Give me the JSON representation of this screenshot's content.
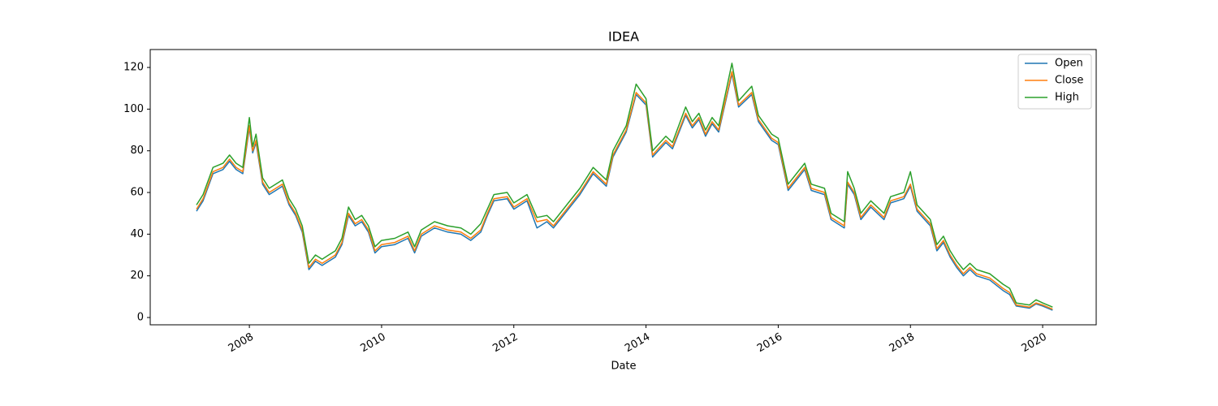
{
  "chart_data": {
    "type": "line",
    "title": "IDEA",
    "x_label": "Date",
    "x": [
      2007.2,
      2007.3,
      2007.45,
      2007.6,
      2007.7,
      2007.8,
      2007.9,
      2008.0,
      2008.05,
      2008.1,
      2008.2,
      2008.3,
      2008.4,
      2008.5,
      2008.6,
      2008.7,
      2008.8,
      2008.9,
      2009.0,
      2009.1,
      2009.2,
      2009.3,
      2009.4,
      2009.5,
      2009.6,
      2009.7,
      2009.8,
      2009.9,
      2010.0,
      2010.2,
      2010.4,
      2010.5,
      2010.6,
      2010.8,
      2011.0,
      2011.2,
      2011.35,
      2011.5,
      2011.6,
      2011.7,
      2011.9,
      2012.0,
      2012.2,
      2012.35,
      2012.5,
      2012.6,
      2012.8,
      2013.0,
      2013.2,
      2013.4,
      2013.5,
      2013.7,
      2013.85,
      2014.0,
      2014.1,
      2014.3,
      2014.4,
      2014.6,
      2014.7,
      2014.8,
      2014.9,
      2015.0,
      2015.1,
      2015.3,
      2015.4,
      2015.6,
      2015.7,
      2015.9,
      2016.0,
      2016.15,
      2016.3,
      2016.4,
      2016.5,
      2016.7,
      2016.8,
      2017.0,
      2017.05,
      2017.15,
      2017.25,
      2017.4,
      2017.6,
      2017.7,
      2017.9,
      2018.0,
      2018.1,
      2018.3,
      2018.4,
      2018.5,
      2018.6,
      2018.7,
      2018.8,
      2018.9,
      2019.0,
      2019.2,
      2019.4,
      2019.5,
      2019.6,
      2019.8,
      2019.9,
      2020.0,
      2020.15
    ],
    "series": [
      {
        "name": "Open",
        "color": "#1f77b4",
        "values": [
          51,
          56,
          69,
          71,
          75,
          71,
          69,
          91,
          79,
          84,
          64,
          59,
          61,
          63,
          54,
          49,
          41,
          23,
          27,
          25,
          27,
          29,
          35,
          49,
          44,
          46,
          41,
          31,
          34,
          35,
          38,
          31,
          39,
          43,
          41,
          40,
          37,
          41,
          49,
          56,
          57,
          52,
          56,
          43,
          46,
          43,
          51,
          59,
          69,
          63,
          77,
          89,
          107,
          102,
          77,
          84,
          81,
          97,
          91,
          95,
          87,
          93,
          89,
          117,
          101,
          107,
          94,
          85,
          83,
          61,
          67,
          71,
          61,
          59,
          47,
          43,
          64,
          59,
          47,
          53,
          47,
          55,
          57,
          63,
          51,
          44,
          32,
          36,
          29,
          24,
          20,
          23,
          20,
          18,
          13,
          11,
          5.5,
          4.5,
          6.5,
          5.5,
          3.5
        ]
      },
      {
        "name": "Close",
        "color": "#ff7f0e",
        "values": [
          52,
          57,
          70,
          72,
          76,
          72,
          70,
          92,
          80,
          85,
          65,
          60,
          62,
          64,
          55,
          50,
          42,
          24,
          28,
          26,
          28,
          30,
          36,
          50,
          45,
          47,
          42,
          32,
          35,
          36,
          39,
          32,
          40,
          44,
          42,
          41,
          38,
          42,
          50,
          57,
          58,
          53,
          57,
          46,
          47,
          44,
          52,
          60,
          70,
          64,
          78,
          90,
          108,
          103,
          78,
          85,
          82,
          98,
          92,
          96,
          88,
          94,
          90,
          118,
          102,
          108,
          95,
          86,
          84,
          62,
          68,
          72,
          62,
          60,
          48,
          44,
          65,
          60,
          48,
          54,
          48,
          56,
          58,
          64,
          52,
          45,
          33,
          37,
          30,
          25,
          21,
          24,
          21,
          19,
          14,
          12,
          6,
          5,
          7,
          6,
          4
        ]
      },
      {
        "name": "High",
        "color": "#2ca02c",
        "values": [
          54,
          59,
          72,
          74,
          78,
          74,
          72,
          96,
          82,
          88,
          67,
          62,
          64,
          66,
          57,
          52,
          44,
          26,
          30,
          28,
          30,
          32,
          38,
          53,
          47,
          49,
          44,
          34,
          37,
          38,
          41,
          34,
          42,
          46,
          44,
          43,
          40,
          45,
          52,
          59,
          60,
          55,
          59,
          48,
          49,
          46,
          54,
          62,
          72,
          66,
          80,
          92,
          112,
          105,
          80,
          87,
          84,
          101,
          94,
          98,
          90,
          96,
          92,
          122,
          104,
          111,
          97,
          88,
          86,
          64,
          70,
          74,
          64,
          62,
          50,
          46,
          70,
          62,
          50,
          56,
          50,
          58,
          60,
          70,
          54,
          47,
          35,
          39,
          32,
          27,
          23,
          26,
          23,
          21,
          16,
          14,
          7,
          6,
          8.5,
          7,
          5
        ]
      }
    ],
    "xlim": [
      2006.5,
      2020.81
    ],
    "xticks": [
      2008,
      2010,
      2012,
      2014,
      2016,
      2018,
      2020
    ],
    "ylim": [
      -3.5,
      128.6
    ],
    "yticks": [
      0,
      20,
      40,
      60,
      80,
      100,
      120
    ],
    "legend": "upper right",
    "grid": false
  }
}
